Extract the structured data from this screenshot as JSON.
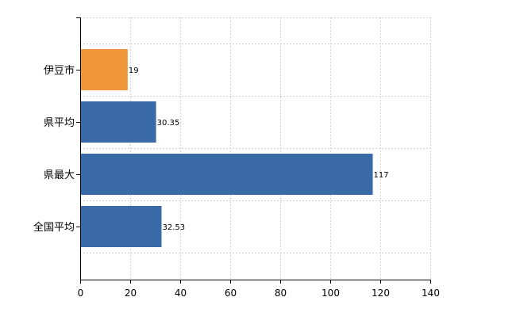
{
  "chart_data": {
    "type": "bar",
    "orientation": "horizontal",
    "categories": [
      "伊豆市",
      "県平均",
      "県最大",
      "全国平均"
    ],
    "values": [
      19,
      30.35,
      117,
      32.53
    ],
    "value_labels": [
      "19",
      "30.35",
      "117",
      "32.53"
    ],
    "bar_colors": [
      "#f0963a",
      "#3a6aa8",
      "#3a6aa8",
      "#3a6aa8"
    ],
    "xlim": [
      0,
      140
    ],
    "xticks": [
      0,
      20,
      40,
      60,
      80,
      100,
      120,
      140
    ],
    "grid": true,
    "legend": "none",
    "title": "",
    "xlabel": "",
    "ylabel": ""
  }
}
